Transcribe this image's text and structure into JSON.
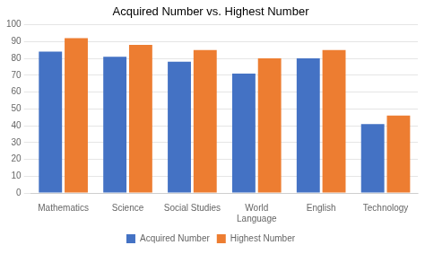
{
  "chart_data": {
    "type": "bar",
    "title": "Acquired Number vs. Highest Number",
    "categories": [
      "Mathematics",
      "Science",
      "Social Studies",
      "World\nLanguage",
      "English",
      "Technology"
    ],
    "series": [
      {
        "name": "Acquired Number",
        "color": "#4472C4",
        "values": [
          84,
          81,
          78,
          71,
          80,
          41
        ]
      },
      {
        "name": "Highest Number",
        "color": "#ED7D31",
        "values": [
          92,
          88,
          85,
          80,
          85,
          46
        ]
      }
    ],
    "ylim": [
      0,
      100
    ],
    "yticks": [
      0,
      10,
      20,
      30,
      40,
      50,
      60,
      70,
      80,
      90,
      100
    ],
    "grid": true,
    "legend": "bottom"
  }
}
